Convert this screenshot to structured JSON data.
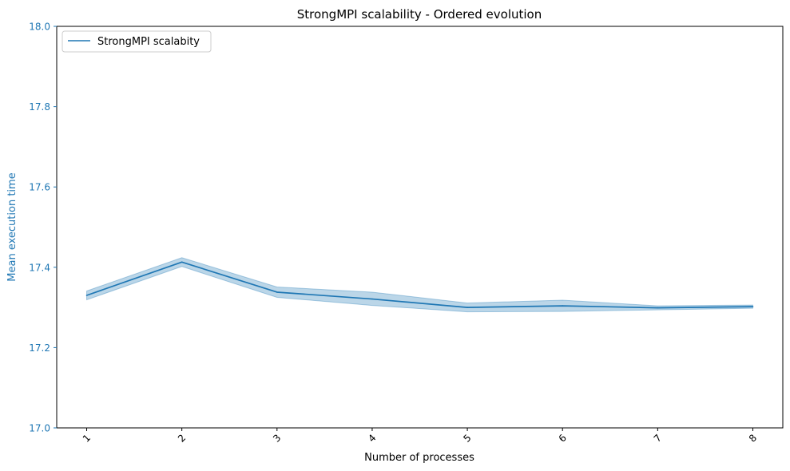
{
  "chart_data": {
    "type": "line",
    "title": "StrongMPI scalability - Ordered evolution",
    "xlabel": "Number of processes",
    "ylabel": "Mean execution time",
    "x": [
      1,
      2,
      3,
      4,
      5,
      6,
      7,
      8
    ],
    "xticks": [
      "1",
      "2",
      "3",
      "4",
      "5",
      "6",
      "7",
      "8"
    ],
    "ylim": [
      17.0,
      18.0
    ],
    "yticks": [
      "17.0",
      "17.2",
      "17.4",
      "17.6",
      "17.8",
      "18.0"
    ],
    "grid": false,
    "legend_position": "upper-left",
    "series": [
      {
        "name": "StrongMPI scalabity",
        "color": "#1f77b4",
        "values": [
          17.33,
          17.413,
          17.338,
          17.321,
          17.3,
          17.304,
          17.299,
          17.302
        ],
        "band_lower": [
          17.319,
          17.402,
          17.325,
          17.305,
          17.289,
          17.29,
          17.294,
          17.298
        ],
        "band_upper": [
          17.341,
          17.424,
          17.351,
          17.338,
          17.311,
          17.318,
          17.304,
          17.306
        ]
      }
    ]
  }
}
